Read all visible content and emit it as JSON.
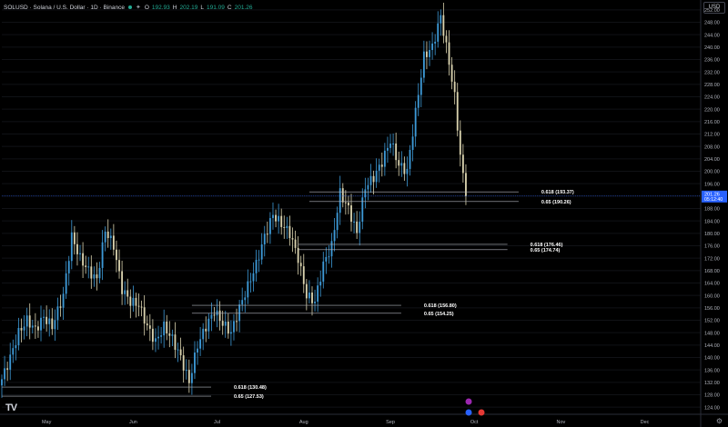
{
  "header": {
    "symbol": "SOLUSD · Solana / U.S. Dollar · 1D · Binance",
    "ohlc": [
      {
        "k": "O",
        "v": "192.93"
      },
      {
        "k": "H",
        "v": "202.19"
      },
      {
        "k": "L",
        "v": "191.09"
      },
      {
        "k": "C",
        "v": "201.26"
      }
    ]
  },
  "currency": "USD",
  "last_price_label": "201.26",
  "countdown_label": "05:12:40",
  "logo": "TV",
  "chart_data": {
    "type": "candlestick",
    "y_ticks": [
      124,
      128,
      132,
      136,
      140,
      144,
      148,
      152,
      156,
      160,
      164,
      168,
      172,
      176,
      180,
      184,
      188,
      192,
      196,
      200,
      204,
      208,
      212,
      216,
      220,
      224,
      228,
      232,
      236,
      240,
      244,
      248,
      252
    ],
    "x_labels": [
      {
        "label": "May",
        "day": 16
      },
      {
        "label": "Jun",
        "day": 47
      },
      {
        "label": "Jul",
        "day": 77
      },
      {
        "label": "Aug",
        "day": 108
      },
      {
        "label": "Sep",
        "day": 139
      },
      {
        "label": "Oct",
        "day": 169
      },
      {
        "label": "Nov",
        "day": 200
      },
      {
        "label": "Dec",
        "day": 230
      }
    ],
    "ylim": [
      122,
      254
    ],
    "xlim": [
      0,
      250
    ],
    "colors": {
      "up": "#3d99d6",
      "down": "#d9d2ae",
      "grid": "#101216",
      "level": "#b2b5be",
      "current": "#2962ff",
      "axis_text": "#b2b5be"
    },
    "fib_levels": [
      {
        "label": "0.618 (130.48)",
        "price": 130.48,
        "from": 0
      },
      {
        "label": "0.65 (127.53)",
        "price": 127.53,
        "from": 0
      },
      {
        "label": "0.618 (156.80)",
        "price": 156.8,
        "from": 68
      },
      {
        "label": "0.65 (154.25)",
        "price": 154.25,
        "from": 68
      },
      {
        "label": "0.618 (176.46)",
        "price": 176.46,
        "from": 106
      },
      {
        "label": "0.65 (174.74)",
        "price": 174.74,
        "from": 106
      },
      {
        "label": "0.618 (193.37)",
        "price": 193.37,
        "from": 110
      },
      {
        "label": "0.65 (190.26)",
        "price": 190.26,
        "from": 110
      }
    ],
    "close_anchors": [
      [
        0,
        133
      ],
      [
        3,
        140
      ],
      [
        6,
        148
      ],
      [
        9,
        152
      ],
      [
        12,
        149
      ],
      [
        15,
        153
      ],
      [
        18,
        150
      ],
      [
        22,
        160
      ],
      [
        25,
        179
      ],
      [
        28,
        172
      ],
      [
        31,
        168
      ],
      [
        34,
        165
      ],
      [
        37,
        181
      ],
      [
        40,
        176
      ],
      [
        43,
        162
      ],
      [
        46,
        158
      ],
      [
        49,
        157
      ],
      [
        52,
        150
      ],
      [
        55,
        145
      ],
      [
        58,
        150
      ],
      [
        61,
        146
      ],
      [
        64,
        140
      ],
      [
        67,
        132
      ],
      [
        70,
        144
      ],
      [
        73,
        150
      ],
      [
        76,
        155
      ],
      [
        79,
        151
      ],
      [
        82,
        148
      ],
      [
        85,
        156
      ],
      [
        88,
        163
      ],
      [
        91,
        170
      ],
      [
        94,
        179
      ],
      [
        97,
        186
      ],
      [
        100,
        183
      ],
      [
        103,
        180
      ],
      [
        106,
        172
      ],
      [
        109,
        160
      ],
      [
        112,
        158
      ],
      [
        115,
        170
      ],
      [
        118,
        176
      ],
      [
        121,
        193
      ],
      [
        124,
        188
      ],
      [
        127,
        180
      ],
      [
        130,
        195
      ],
      [
        133,
        198
      ],
      [
        136,
        203
      ],
      [
        139,
        210
      ],
      [
        142,
        202
      ],
      [
        145,
        200
      ],
      [
        148,
        219
      ],
      [
        151,
        237
      ],
      [
        154,
        240
      ],
      [
        157,
        250
      ],
      [
        160,
        235
      ],
      [
        162,
        224
      ],
      [
        164,
        205
      ],
      [
        166,
        192
      ]
    ]
  }
}
